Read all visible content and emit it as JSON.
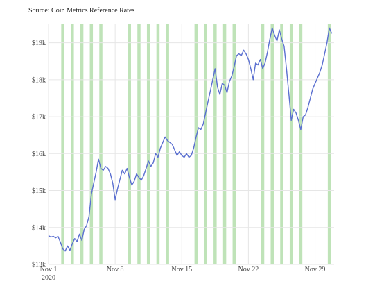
{
  "chart_data": {
    "type": "line",
    "title": "",
    "source_note": "Source: Coin Metrics Reference Rates",
    "xlabel": "",
    "ylabel": "",
    "x_range": [
      "2020-11-01",
      "2020-11-30"
    ],
    "ylim": [
      13000,
      19500
    ],
    "y_ticks": [
      {
        "value": 13000,
        "label": "$13k"
      },
      {
        "value": 14000,
        "label": "$14k"
      },
      {
        "value": 15000,
        "label": "$15k"
      },
      {
        "value": 16000,
        "label": "$16k"
      },
      {
        "value": 17000,
        "label": "$17k"
      },
      {
        "value": 18000,
        "label": "$18k"
      },
      {
        "value": 19000,
        "label": "$19k"
      }
    ],
    "x_ticks": [
      {
        "value": "2020-11-01",
        "label": "Nov 1",
        "sublabel": "2020"
      },
      {
        "value": "2020-11-08",
        "label": "Nov 8",
        "sublabel": ""
      },
      {
        "value": "2020-11-15",
        "label": "Nov 15",
        "sublabel": ""
      },
      {
        "value": "2020-11-22",
        "label": "Nov 22",
        "sublabel": ""
      },
      {
        "value": "2020-11-29",
        "label": "Nov 29",
        "sublabel": ""
      }
    ],
    "grid": true,
    "highlight_color": "#a9d9a0",
    "line_color": "#5a6fd0",
    "highlight_dates": [
      "2020-11-02",
      "2020-11-03",
      "2020-11-04",
      "2020-11-05",
      "2020-11-06",
      "2020-11-09",
      "2020-11-10",
      "2020-11-11",
      "2020-11-12",
      "2020-11-13",
      "2020-11-16",
      "2020-11-17",
      "2020-11-18",
      "2020-11-19",
      "2020-11-20",
      "2020-11-23",
      "2020-11-24",
      "2020-11-25",
      "2020-11-26",
      "2020-11-27",
      "2020-11-30"
    ],
    "series": [
      {
        "points": [
          [
            "2020-11-01T00:00",
            13780
          ],
          [
            "2020-11-01T06:00",
            13740
          ],
          [
            "2020-11-01T12:00",
            13760
          ],
          [
            "2020-11-01T18:00",
            13720
          ],
          [
            "2020-11-02T00:00",
            13760
          ],
          [
            "2020-11-02T06:00",
            13600
          ],
          [
            "2020-11-02T12:00",
            13420
          ],
          [
            "2020-11-02T18:00",
            13360
          ],
          [
            "2020-11-03T00:00",
            13500
          ],
          [
            "2020-11-03T06:00",
            13380
          ],
          [
            "2020-11-03T12:00",
            13560
          ],
          [
            "2020-11-03T18:00",
            13700
          ],
          [
            "2020-11-04T00:00",
            13620
          ],
          [
            "2020-11-04T06:00",
            13820
          ],
          [
            "2020-11-04T12:00",
            13650
          ],
          [
            "2020-11-04T18:00",
            13950
          ],
          [
            "2020-11-05T00:00",
            14050
          ],
          [
            "2020-11-05T06:00",
            14300
          ],
          [
            "2020-11-05T12:00",
            14900
          ],
          [
            "2020-11-05T18:00",
            15200
          ],
          [
            "2020-11-06T00:00",
            15500
          ],
          [
            "2020-11-06T06:00",
            15850
          ],
          [
            "2020-11-06T12:00",
            15600
          ],
          [
            "2020-11-06T18:00",
            15550
          ],
          [
            "2020-11-07T00:00",
            15650
          ],
          [
            "2020-11-07T06:00",
            15600
          ],
          [
            "2020-11-07T12:00",
            15450
          ],
          [
            "2020-11-07T18:00",
            15200
          ],
          [
            "2020-11-08T00:00",
            14750
          ],
          [
            "2020-11-08T06:00",
            15050
          ],
          [
            "2020-11-08T12:00",
            15300
          ],
          [
            "2020-11-08T18:00",
            15550
          ],
          [
            "2020-11-09T00:00",
            15450
          ],
          [
            "2020-11-09T06:00",
            15600
          ],
          [
            "2020-11-09T12:00",
            15350
          ],
          [
            "2020-11-09T18:00",
            15150
          ],
          [
            "2020-11-10T00:00",
            15250
          ],
          [
            "2020-11-10T06:00",
            15450
          ],
          [
            "2020-11-10T12:00",
            15350
          ],
          [
            "2020-11-10T18:00",
            15280
          ],
          [
            "2020-11-11T00:00",
            15400
          ],
          [
            "2020-11-11T06:00",
            15600
          ],
          [
            "2020-11-11T12:00",
            15800
          ],
          [
            "2020-11-11T18:00",
            15650
          ],
          [
            "2020-11-12T00:00",
            15750
          ],
          [
            "2020-11-12T06:00",
            16000
          ],
          [
            "2020-11-12T12:00",
            15900
          ],
          [
            "2020-11-12T18:00",
            16150
          ],
          [
            "2020-11-13T00:00",
            16300
          ],
          [
            "2020-11-13T06:00",
            16450
          ],
          [
            "2020-11-13T12:00",
            16350
          ],
          [
            "2020-11-13T18:00",
            16300
          ],
          [
            "2020-11-14T00:00",
            16250
          ],
          [
            "2020-11-14T06:00",
            16100
          ],
          [
            "2020-11-14T12:00",
            15950
          ],
          [
            "2020-11-14T18:00",
            16050
          ],
          [
            "2020-11-15T00:00",
            15950
          ],
          [
            "2020-11-15T06:00",
            15900
          ],
          [
            "2020-11-15T12:00",
            16000
          ],
          [
            "2020-11-15T18:00",
            15900
          ],
          [
            "2020-11-16T00:00",
            15950
          ],
          [
            "2020-11-16T06:00",
            16150
          ],
          [
            "2020-11-16T12:00",
            16450
          ],
          [
            "2020-11-16T18:00",
            16700
          ],
          [
            "2020-11-17T00:00",
            16650
          ],
          [
            "2020-11-17T06:00",
            16800
          ],
          [
            "2020-11-17T12:00",
            17100
          ],
          [
            "2020-11-17T18:00",
            17400
          ],
          [
            "2020-11-18T00:00",
            17700
          ],
          [
            "2020-11-18T06:00",
            18000
          ],
          [
            "2020-11-18T12:00",
            18300
          ],
          [
            "2020-11-18T18:00",
            17800
          ],
          [
            "2020-11-19T00:00",
            17600
          ],
          [
            "2020-11-19T06:00",
            17900
          ],
          [
            "2020-11-19T12:00",
            17850
          ],
          [
            "2020-11-19T18:00",
            17650
          ],
          [
            "2020-11-20T00:00",
            17950
          ],
          [
            "2020-11-20T06:00",
            18100
          ],
          [
            "2020-11-20T12:00",
            18350
          ],
          [
            "2020-11-20T18:00",
            18650
          ],
          [
            "2020-11-21T00:00",
            18700
          ],
          [
            "2020-11-21T06:00",
            18650
          ],
          [
            "2020-11-21T12:00",
            18800
          ],
          [
            "2020-11-21T18:00",
            18700
          ],
          [
            "2020-11-22T00:00",
            18550
          ],
          [
            "2020-11-22T06:00",
            18300
          ],
          [
            "2020-11-22T12:00",
            18000
          ],
          [
            "2020-11-22T18:00",
            18450
          ],
          [
            "2020-11-23T00:00",
            18400
          ],
          [
            "2020-11-23T06:00",
            18550
          ],
          [
            "2020-11-23T12:00",
            18300
          ],
          [
            "2020-11-23T18:00",
            18450
          ],
          [
            "2020-11-24T00:00",
            18750
          ],
          [
            "2020-11-24T06:00",
            19100
          ],
          [
            "2020-11-24T12:00",
            19400
          ],
          [
            "2020-11-24T18:00",
            19200
          ],
          [
            "2020-11-25T00:00",
            19050
          ],
          [
            "2020-11-25T06:00",
            19350
          ],
          [
            "2020-11-25T12:00",
            19100
          ],
          [
            "2020-11-25T18:00",
            18900
          ],
          [
            "2020-11-26T00:00",
            18300
          ],
          [
            "2020-11-26T06:00",
            17600
          ],
          [
            "2020-11-26T12:00",
            16900
          ],
          [
            "2020-11-26T18:00",
            17200
          ],
          [
            "2020-11-27T00:00",
            17100
          ],
          [
            "2020-11-27T06:00",
            16900
          ],
          [
            "2020-11-27T12:00",
            16650
          ],
          [
            "2020-11-27T18:00",
            17000
          ],
          [
            "2020-11-28T00:00",
            17050
          ],
          [
            "2020-11-28T06:00",
            17250
          ],
          [
            "2020-11-28T12:00",
            17500
          ],
          [
            "2020-11-28T18:00",
            17750
          ],
          [
            "2020-11-29T00:00",
            17900
          ],
          [
            "2020-11-29T06:00",
            18050
          ],
          [
            "2020-11-29T12:00",
            18200
          ],
          [
            "2020-11-29T18:00",
            18400
          ],
          [
            "2020-11-30T00:00",
            18700
          ],
          [
            "2020-11-30T06:00",
            19000
          ],
          [
            "2020-11-30T12:00",
            19400
          ],
          [
            "2020-11-30T18:00",
            19250
          ]
        ]
      }
    ]
  }
}
